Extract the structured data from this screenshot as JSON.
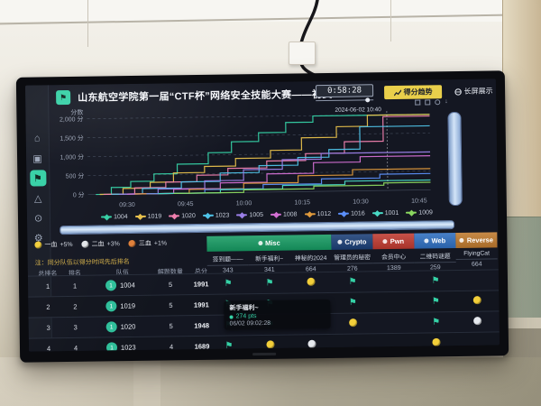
{
  "header": {
    "title": "山东航空学院第一届“CTF杯”网络安全技能大赛——初赛",
    "timer": "0:58:28",
    "trend_button": "得分趋势",
    "screen_button": "长屏展示"
  },
  "sidebar": {
    "items": [
      {
        "icon": "home-icon"
      },
      {
        "icon": "archive-icon"
      },
      {
        "icon": "flag-icon",
        "active": true
      },
      {
        "icon": "image-icon"
      },
      {
        "icon": "clock-icon"
      },
      {
        "icon": "wrench-icon"
      }
    ]
  },
  "chart_data": {
    "type": "line",
    "step": true,
    "ylabel": "分数",
    "y_ticks": [
      "2,000 分",
      "1,500 分",
      "1,000 分",
      "500 分",
      "0 分"
    ],
    "y_tick_values": [
      2000,
      1500,
      1000,
      500,
      0
    ],
    "ylim": [
      0,
      2100
    ],
    "x_ticks": [
      "09:30",
      "09:45",
      "10:00",
      "10:15",
      "10:30",
      "10:45"
    ],
    "x_tick_minutes": [
      570,
      585,
      600,
      615,
      630,
      645
    ],
    "x_range_minutes": [
      560,
      648
    ],
    "hover_label": "2024-06-02 10:40",
    "crosshair_minute": 637,
    "grid": true,
    "legend_position": "bottom",
    "series": [
      {
        "name": "1004",
        "color": "#35d0a5",
        "points": [
          [
            562,
            0
          ],
          [
            566,
            180
          ],
          [
            571,
            330
          ],
          [
            577,
            520
          ],
          [
            583,
            770
          ],
          [
            591,
            1060
          ],
          [
            597,
            1340
          ],
          [
            604,
            1570
          ],
          [
            611,
            1830
          ],
          [
            618,
            1991
          ],
          [
            648,
            1991
          ]
        ]
      },
      {
        "name": "1019",
        "color": "#e7c04c",
        "points": [
          [
            563,
            0
          ],
          [
            569,
            150
          ],
          [
            576,
            300
          ],
          [
            582,
            540
          ],
          [
            590,
            700
          ],
          [
            598,
            900
          ],
          [
            607,
            1100
          ],
          [
            615,
            1420
          ],
          [
            624,
            1700
          ],
          [
            632,
            1991
          ],
          [
            648,
            1991
          ]
        ]
      },
      {
        "name": "1020",
        "color": "#ef7fae",
        "points": [
          [
            564,
            0
          ],
          [
            572,
            160
          ],
          [
            580,
            300
          ],
          [
            588,
            470
          ],
          [
            596,
            640
          ],
          [
            606,
            820
          ],
          [
            616,
            1000
          ],
          [
            626,
            1300
          ],
          [
            636,
            1948
          ],
          [
            648,
            1948
          ]
        ]
      },
      {
        "name": "1023",
        "color": "#4fc3e8",
        "points": [
          [
            566,
            0
          ],
          [
            574,
            140
          ],
          [
            584,
            300
          ],
          [
            594,
            520
          ],
          [
            604,
            700
          ],
          [
            614,
            900
          ],
          [
            622,
            1100
          ],
          [
            630,
            1689
          ],
          [
            648,
            1689
          ]
        ]
      },
      {
        "name": "1005",
        "color": "#9b7fe8",
        "points": [
          [
            568,
            0
          ],
          [
            578,
            120
          ],
          [
            590,
            320
          ],
          [
            600,
            600
          ],
          [
            610,
            850
          ],
          [
            620,
            1000
          ],
          [
            648,
            1000
          ]
        ]
      },
      {
        "name": "1008",
        "color": "#d36fd3",
        "points": [
          [
            570,
            0
          ],
          [
            582,
            110
          ],
          [
            594,
            260
          ],
          [
            606,
            480
          ],
          [
            618,
            760
          ],
          [
            630,
            900
          ],
          [
            648,
            900
          ]
        ]
      },
      {
        "name": "1012",
        "color": "#e09a3c",
        "points": [
          [
            572,
            0
          ],
          [
            586,
            100
          ],
          [
            600,
            240
          ],
          [
            614,
            420
          ],
          [
            628,
            560
          ],
          [
            648,
            560
          ]
        ]
      },
      {
        "name": "1016",
        "color": "#5b8ff9",
        "points": [
          [
            575,
            0
          ],
          [
            590,
            90
          ],
          [
            605,
            200
          ],
          [
            620,
            330
          ],
          [
            635,
            430
          ],
          [
            648,
            430
          ]
        ]
      },
      {
        "name": "1001",
        "color": "#49d9c5",
        "points": [
          [
            578,
            0
          ],
          [
            594,
            80
          ],
          [
            610,
            170
          ],
          [
            626,
            260
          ],
          [
            648,
            260
          ]
        ]
      },
      {
        "name": "1009",
        "color": "#8ad65f",
        "points": [
          [
            582,
            0
          ],
          [
            600,
            70
          ],
          [
            618,
            140
          ],
          [
            636,
            200
          ],
          [
            648,
            200
          ]
        ]
      }
    ]
  },
  "blood_legend": [
    {
      "label": "一血",
      "bonus": "+5%",
      "color": "#f3cf3a"
    },
    {
      "label": "二血",
      "bonus": "+3%",
      "color": "#e3e6ea"
    },
    {
      "label": "三血",
      "bonus": "+1%",
      "color": "#e0803a"
    }
  ],
  "categories": [
    {
      "name": "Misc",
      "color": "#169a62",
      "span": 3
    },
    {
      "name": "Crypto",
      "color": "#1b3f77",
      "span": 1
    },
    {
      "name": "Pwn",
      "color": "#bf3a30",
      "span": 1
    },
    {
      "name": "Web",
      "color": "#2f6fc0",
      "span": 1
    },
    {
      "name": "Reverse",
      "color": "#bf7a2e",
      "span": 1
    }
  ],
  "table": {
    "note": "注：同分队伍以得分时间先后排名",
    "columns": [
      "总排名",
      "排名",
      "队伍",
      "解题数量",
      "总分"
    ],
    "challenges": [
      {
        "name": "签到题——",
        "points": "343"
      },
      {
        "name": "新手福利~",
        "points": "341"
      },
      {
        "name": "神秘的2024",
        "points": "664"
      },
      {
        "name": "管理员的秘密",
        "points": "276"
      },
      {
        "name": "会员中心",
        "points": "1389"
      },
      {
        "name": "二维码谜题",
        "points": "259"
      },
      {
        "name": "FlyingCat",
        "points": "664"
      }
    ],
    "rows": [
      {
        "overall": "1",
        "rank": "1",
        "badge": "1",
        "team": "1004",
        "solved": "5",
        "score": "1991",
        "cells": [
          "flag",
          "flag",
          "first",
          "flag",
          "",
          "flag",
          ""
        ]
      },
      {
        "overall": "2",
        "rank": "2",
        "badge": "1",
        "team": "1019",
        "solved": "5",
        "score": "1991",
        "cells": [
          "flag",
          "flag",
          "",
          "flag",
          "",
          "flag",
          "first"
        ]
      },
      {
        "overall": "3",
        "rank": "3",
        "badge": "1",
        "team": "1020",
        "solved": "5",
        "score": "1948",
        "cells": [
          "flag",
          "flag",
          "",
          "first",
          "",
          "flag",
          "second"
        ]
      },
      {
        "overall": "4",
        "rank": "4",
        "badge": "1",
        "team": "1023",
        "solved": "4",
        "score": "1689",
        "cells": [
          "flag",
          "first",
          "second",
          "",
          "",
          "first",
          ""
        ]
      }
    ]
  },
  "tooltip": {
    "title": "新手福利~",
    "points": "274 pts",
    "time": "06/02 09:02:28"
  }
}
